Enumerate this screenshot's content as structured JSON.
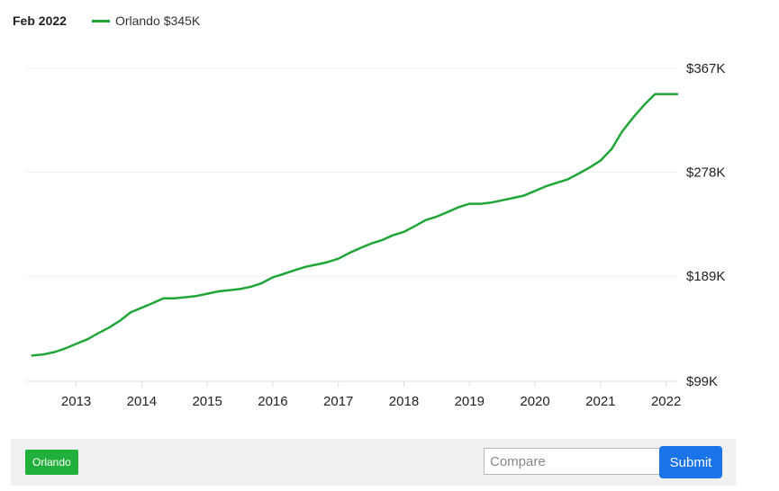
{
  "header": {
    "period": "Feb 2022"
  },
  "legend": {
    "label": "Orlando",
    "value": "$345K"
  },
  "chart_data": {
    "type": "line",
    "series": [
      {
        "name": "Orlando",
        "color": "#1fa637",
        "x": [
          2012.33,
          2012.5,
          2012.67,
          2012.83,
          2013.0,
          2013.17,
          2013.33,
          2013.5,
          2013.67,
          2013.83,
          2014.0,
          2014.17,
          2014.33,
          2014.5,
          2014.67,
          2014.83,
          2015.0,
          2015.17,
          2015.33,
          2015.5,
          2015.67,
          2015.83,
          2016.0,
          2016.17,
          2016.33,
          2016.5,
          2016.67,
          2016.83,
          2017.0,
          2017.17,
          2017.33,
          2017.5,
          2017.67,
          2017.83,
          2018.0,
          2018.17,
          2018.33,
          2018.5,
          2018.67,
          2018.83,
          2019.0,
          2019.08,
          2019.17,
          2019.33,
          2019.5,
          2019.67,
          2019.83,
          2020.0,
          2020.17,
          2020.33,
          2020.5,
          2020.67,
          2020.83,
          2021.0,
          2021.17,
          2021.33,
          2021.5,
          2021.67,
          2021.83,
          2022.0,
          2022.17
        ],
        "values": [
          121,
          122,
          124,
          127,
          131,
          135,
          140,
          145,
          151,
          158,
          162,
          166,
          170,
          170,
          171,
          172,
          174,
          176,
          177,
          178,
          180,
          183,
          188,
          191,
          194,
          197,
          199,
          201,
          204,
          209,
          213,
          217,
          220,
          224,
          227,
          232,
          237,
          240,
          244,
          248,
          251,
          251,
          251,
          252,
          254,
          256,
          258,
          262,
          266,
          269,
          272,
          277,
          282,
          288,
          298,
          313,
          325,
          336,
          345,
          345,
          345
        ]
      }
    ],
    "title": "",
    "xlabel": "",
    "ylabel": "",
    "x_ticks": [
      "2013",
      "2014",
      "2015",
      "2016",
      "2017",
      "2018",
      "2019",
      "2020",
      "2021",
      "2022"
    ],
    "y_ticks": [
      "$99K",
      "$189K",
      "$278K",
      "$367K"
    ],
    "y_tick_values": [
      99,
      189,
      278,
      367
    ],
    "xlim": [
      2012.25,
      2022.17
    ],
    "ylim": [
      99,
      367
    ],
    "grid": true,
    "y_axis_side": "right"
  },
  "controls": {
    "city_chip": "Orlando",
    "compare_placeholder": "Compare",
    "submit_label": "Submit"
  }
}
